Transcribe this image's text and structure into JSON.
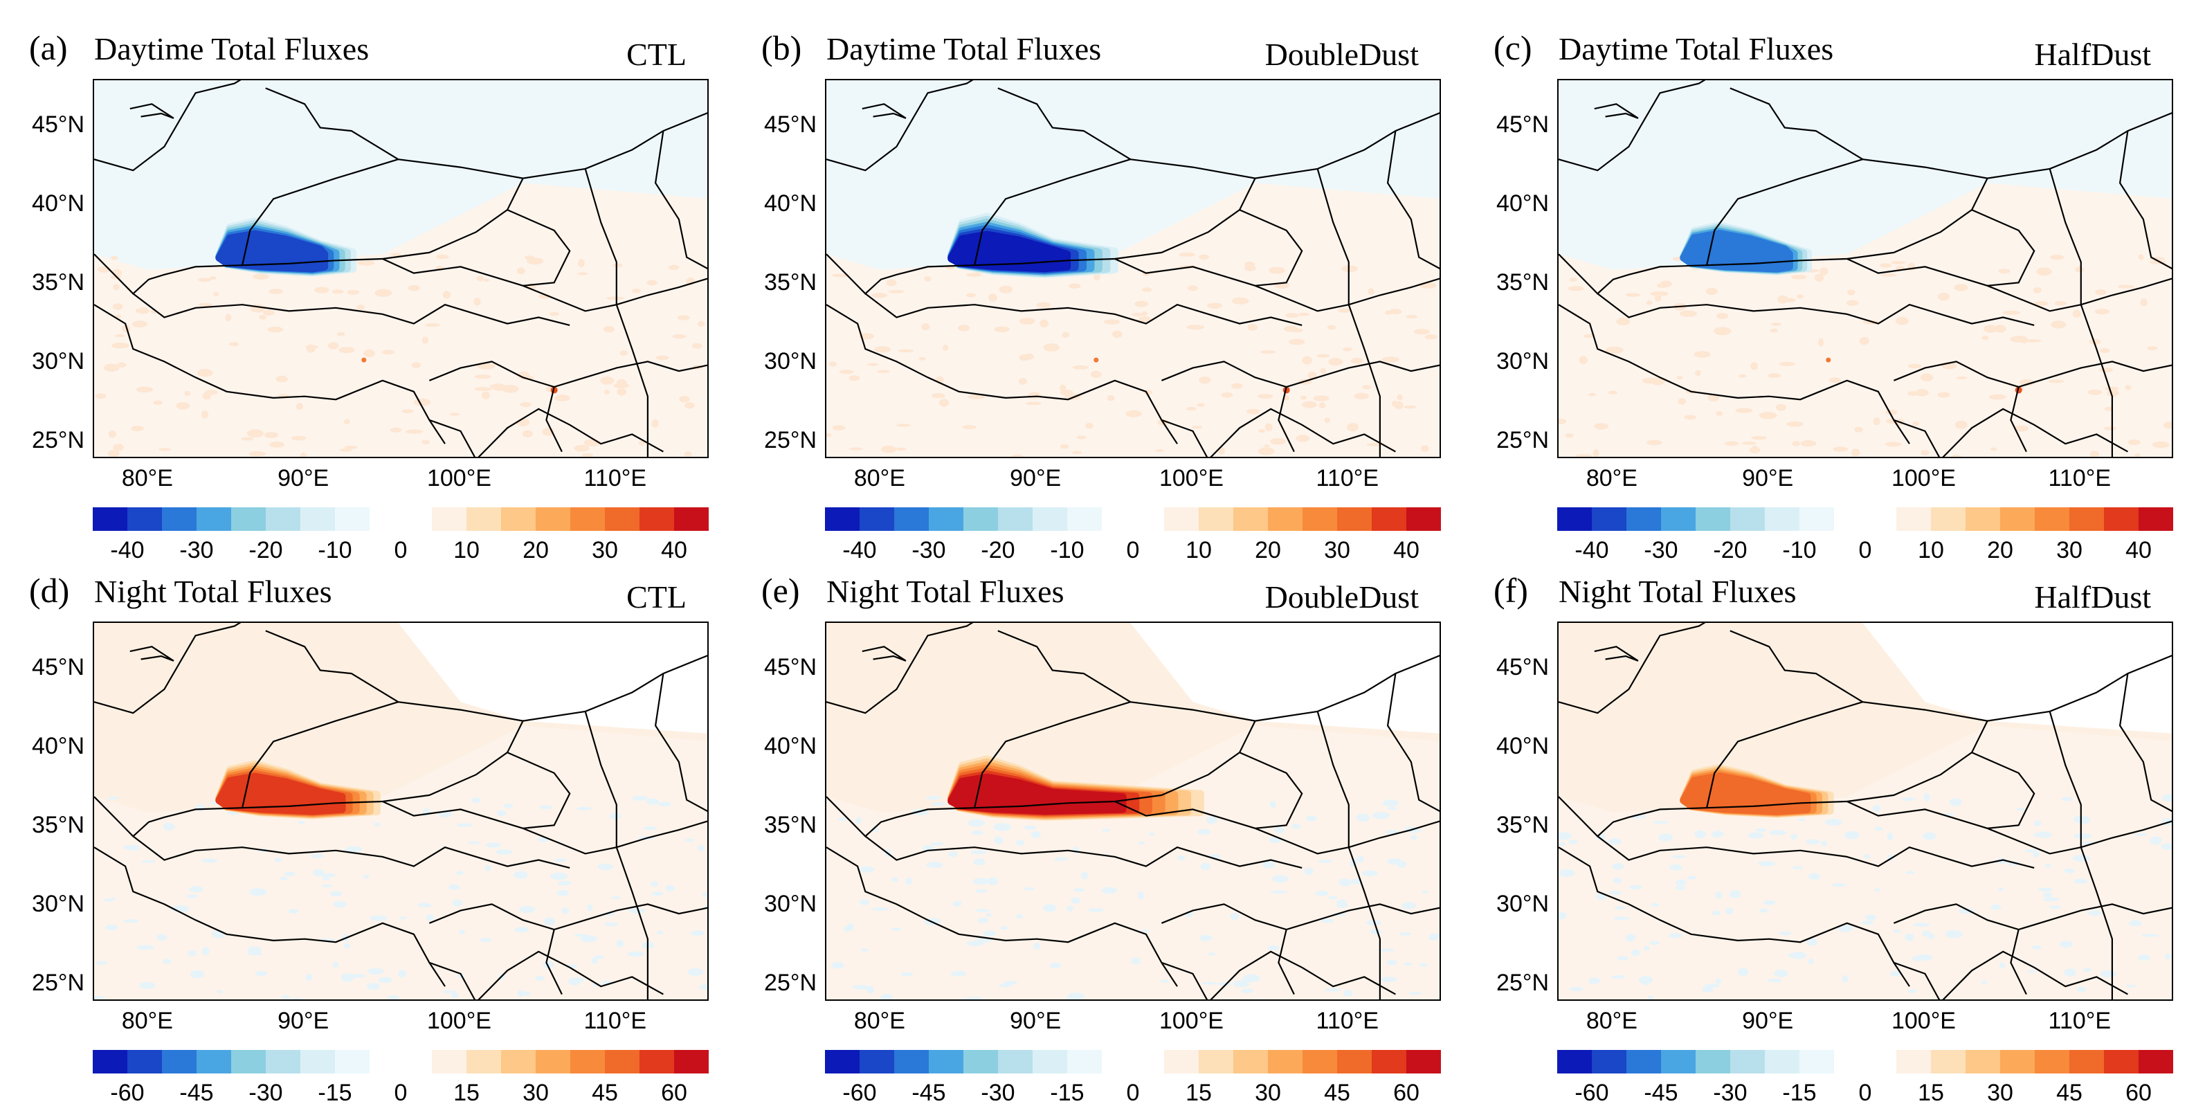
{
  "figure": {
    "panels": [
      {
        "label": "(a)",
        "title": "Daytime Total Fluxes",
        "case": "CTL",
        "period": "day",
        "intensity": 1.0
      },
      {
        "label": "(b)",
        "title": "Daytime Total Fluxes",
        "case": "DoubleDust",
        "period": "day",
        "intensity": 1.6
      },
      {
        "label": "(c)",
        "title": "Daytime Total Fluxes",
        "case": "HalfDust",
        "period": "day",
        "intensity": 0.5
      },
      {
        "label": "(d)",
        "title": "Night Total Fluxes",
        "case": "CTL",
        "period": "night",
        "intensity": 1.0
      },
      {
        "label": "(e)",
        "title": "Night Total Fluxes",
        "case": "DoubleDust",
        "period": "night",
        "intensity": 1.6
      },
      {
        "label": "(f)",
        "title": "Night Total Fluxes",
        "case": "HalfDust",
        "period": "night",
        "intensity": 0.5
      }
    ],
    "lat_ticks": [
      "45°N",
      "40°N",
      "35°N",
      "30°N",
      "25°N"
    ],
    "lon_ticks": [
      "80°E",
      "90°E",
      "100°E",
      "110°E"
    ],
    "colorbar_day": {
      "ticks": [
        "-40",
        "-30",
        "-20",
        "-10",
        "0",
        "10",
        "20",
        "30",
        "40"
      ]
    },
    "colorbar_night": {
      "ticks": [
        "-60",
        "-45",
        "-30",
        "-15",
        "0",
        "15",
        "30",
        "45",
        "60"
      ]
    },
    "colors": {
      "neg": [
        "#0c1ab8",
        "#1a46c8",
        "#2a78d8",
        "#4aa6e2",
        "#8ccfe0",
        "#b8e0ec",
        "#daf0f6",
        "#ecf8fb"
      ],
      "pos": [
        "#fdf0e4",
        "#fde0b8",
        "#fdc888",
        "#fca95a",
        "#f88a3c",
        "#f06a2a",
        "#e23a1c",
        "#c8101a"
      ]
    }
  }
}
